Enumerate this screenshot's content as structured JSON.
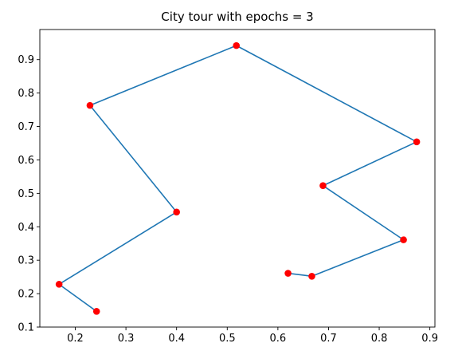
{
  "chart_data": {
    "type": "line",
    "title": "City tour with epochs = 3",
    "xlabel": "",
    "ylabel": "",
    "xlim": [
      0.13,
      0.91
    ],
    "ylim": [
      0.1,
      0.99
    ],
    "xticks": [
      0.2,
      0.3,
      0.4,
      0.5,
      0.6,
      0.7,
      0.8,
      0.9
    ],
    "yticks": [
      0.1,
      0.2,
      0.3,
      0.4,
      0.5,
      0.6,
      0.7,
      0.8,
      0.9
    ],
    "grid": false,
    "legend": "none",
    "line_color": "#1f77b4",
    "marker_color": "#ff0000",
    "series": [
      {
        "x": [
          0.242,
          0.168,
          0.4,
          0.229,
          0.518,
          0.874,
          0.689,
          0.848,
          0.667,
          0.62
        ],
        "y": [
          0.147,
          0.228,
          0.444,
          0.763,
          0.942,
          0.654,
          0.523,
          0.361,
          0.252,
          0.261
        ]
      }
    ]
  }
}
